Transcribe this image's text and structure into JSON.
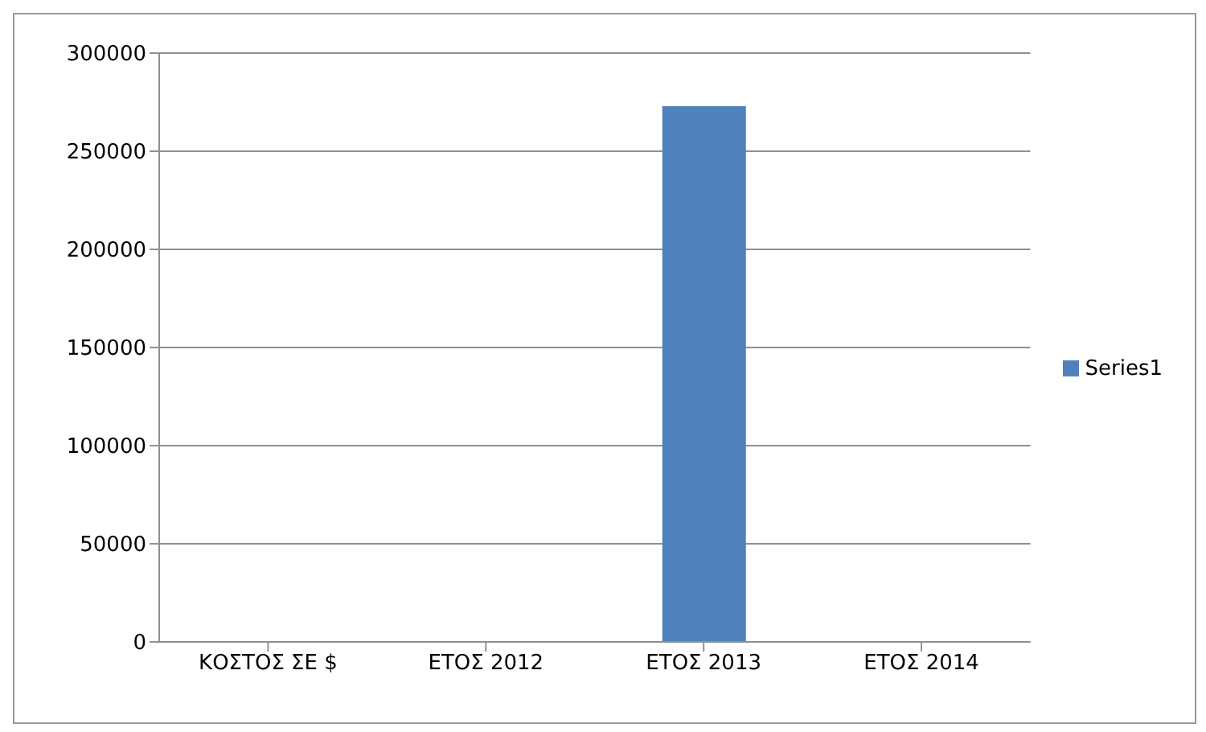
{
  "chart_data": {
    "type": "bar",
    "categories": [
      "ΚΟΣΤΟΣ ΣΕ $",
      "ΕΤΟΣ 2012",
      "ΕΤΟΣ 2013",
      "ΕΤΟΣ 2014"
    ],
    "series": [
      {
        "name": "Series1",
        "color": "#4f81bd",
        "values": [
          0,
          0,
          273000,
          0
        ]
      }
    ],
    "ylim": [
      0,
      300000
    ],
    "yticks": [
      0,
      50000,
      100000,
      150000,
      200000,
      250000,
      300000
    ],
    "grid": "y",
    "legend": "right"
  }
}
